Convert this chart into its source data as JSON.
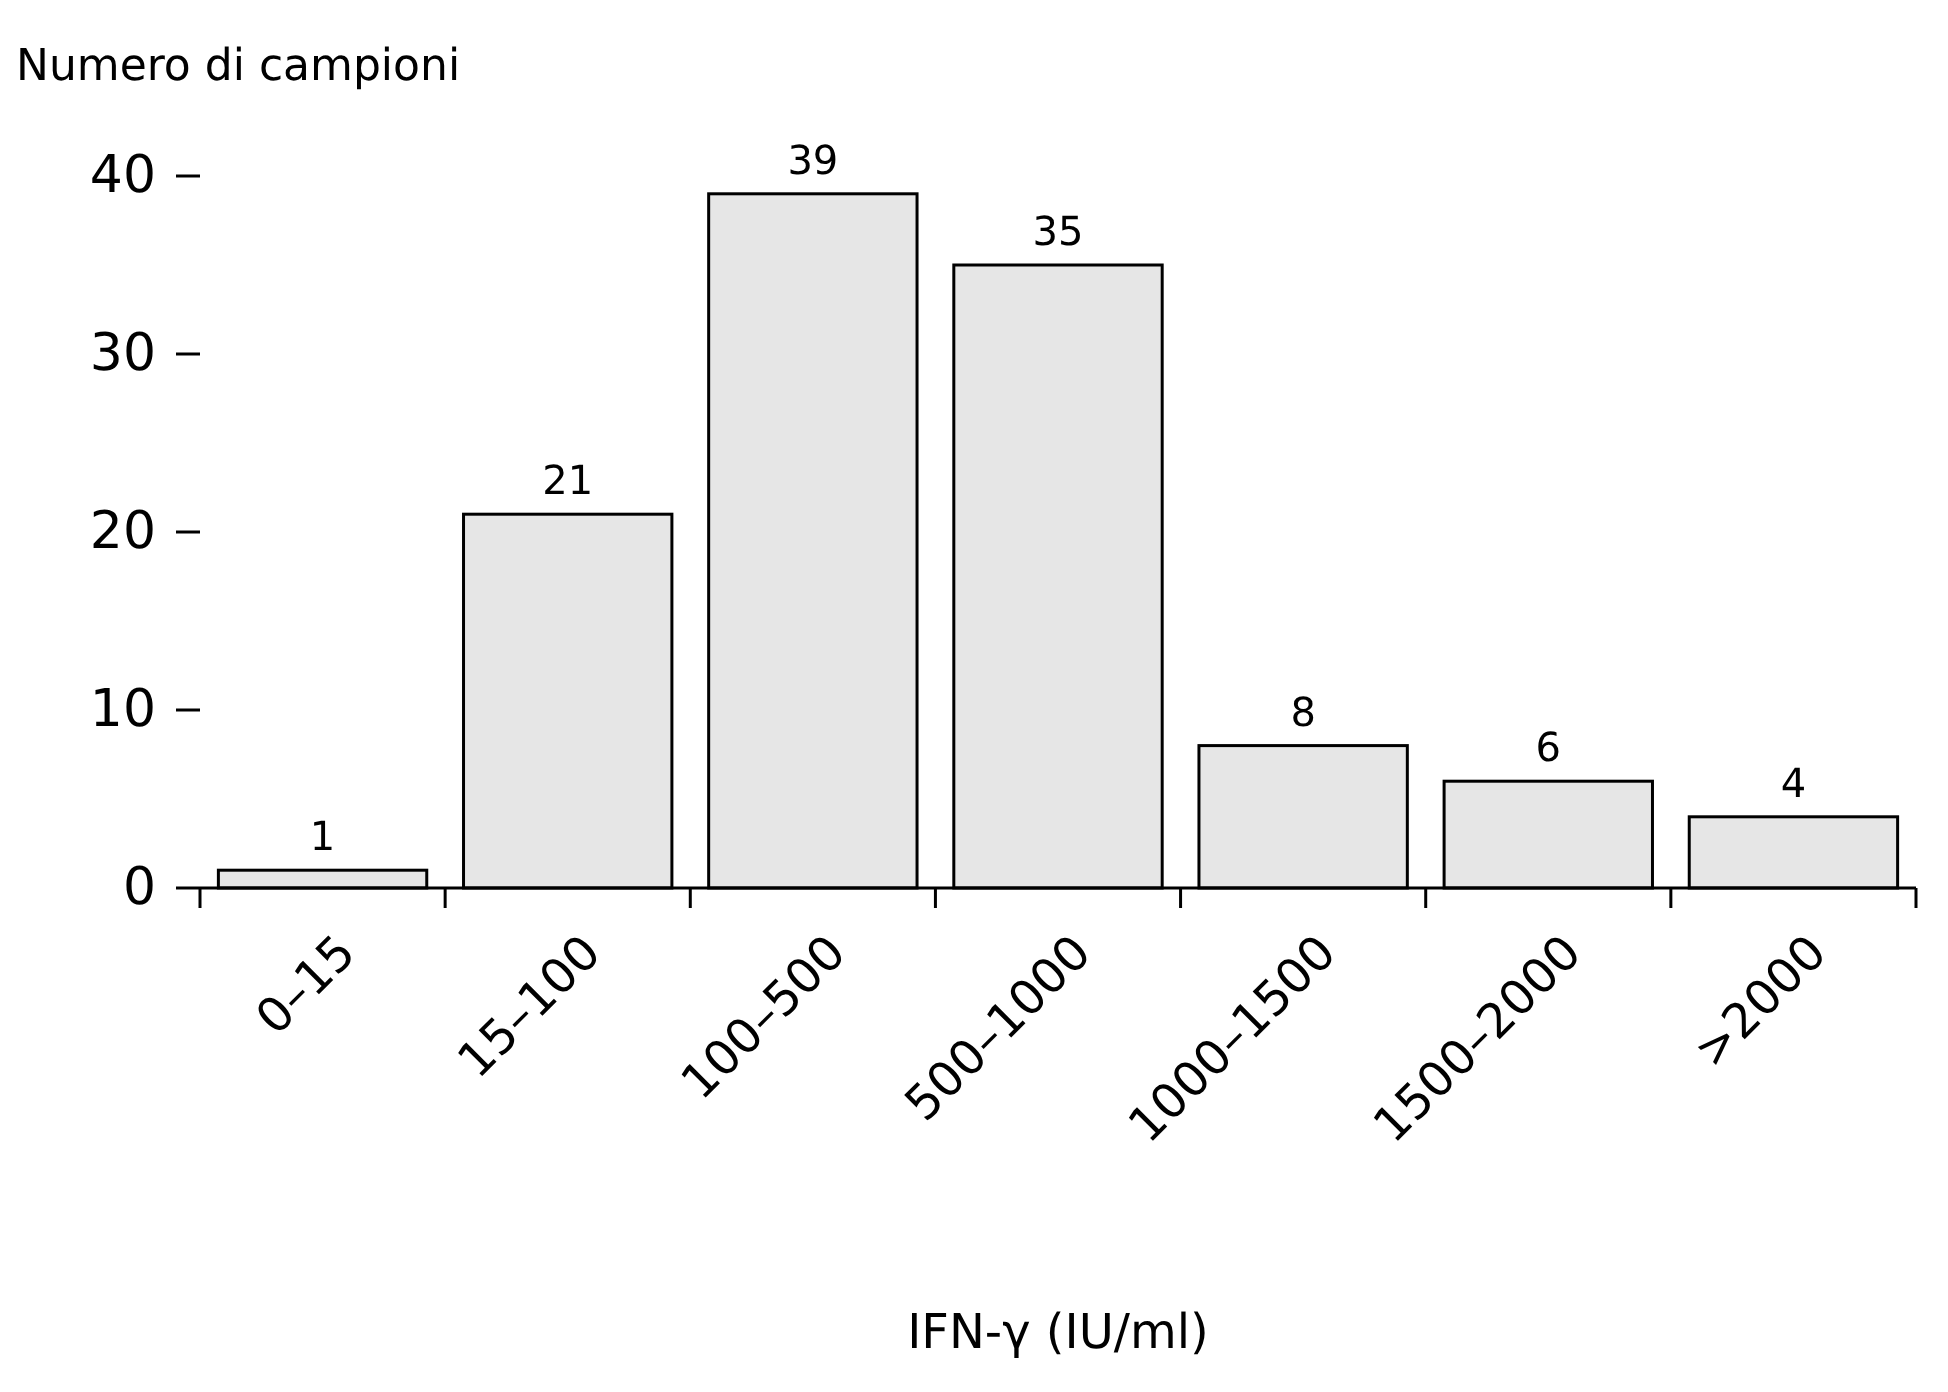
{
  "chart_data": {
    "type": "bar",
    "ylabel": "Numero di campioni",
    "xlabel": "IFN-γ (IU/ml)",
    "categories": [
      "0–15",
      "15–100",
      "100–500",
      "500–1000",
      "1000–1500",
      "1500–2000",
      ">2000"
    ],
    "values": [
      1,
      21,
      39,
      35,
      8,
      6,
      4
    ],
    "color": "#e6e6e6",
    "ylim": [
      0,
      40
    ],
    "yticks": [
      0,
      10,
      20,
      30,
      40
    ],
    "data_labels": true
  }
}
